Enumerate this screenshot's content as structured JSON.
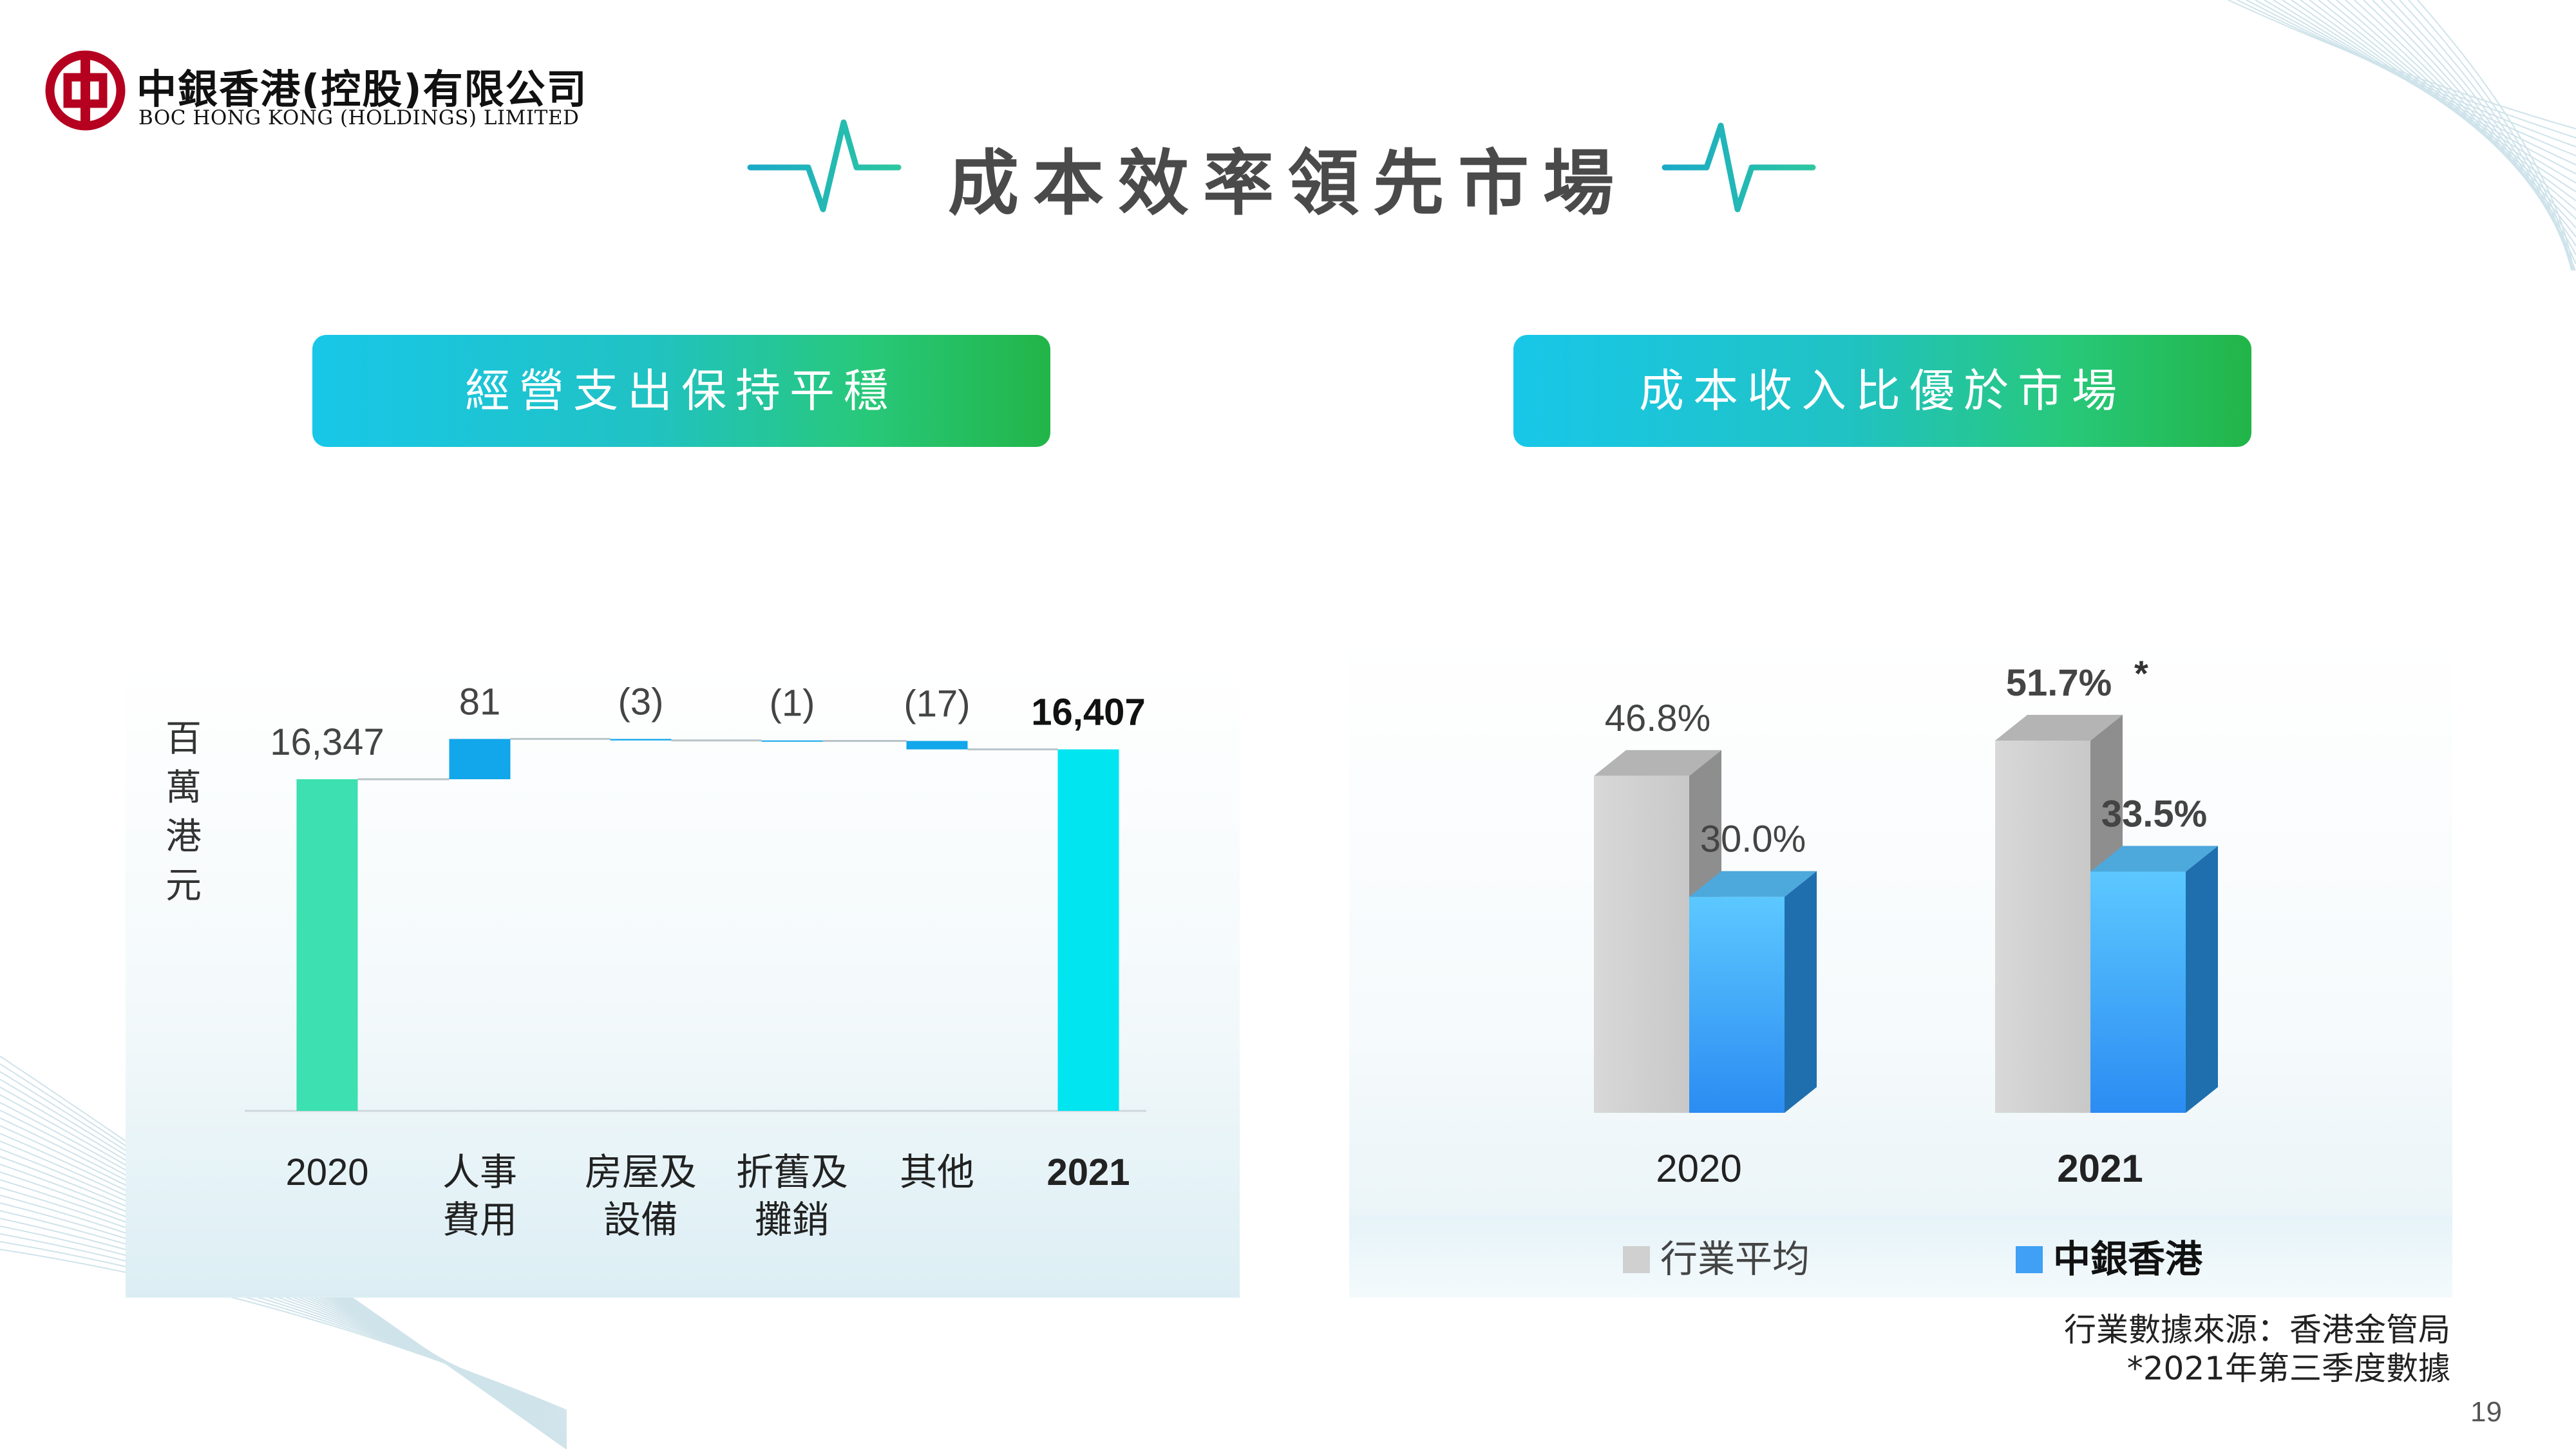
{
  "header": {
    "logo_cn": "中銀香港(控股)有限公司",
    "logo_en": "BOC HONG KONG (HOLDINGS) LIMITED",
    "title": "成本效率領先市場",
    "brand_color": "#b5001f"
  },
  "left_section": {
    "title": "經營支出保持平穩"
  },
  "right_section": {
    "title": "成本收入比優於市場"
  },
  "colors": {
    "green_bar": "#3de0b0",
    "cyan_bar": "#00e5f0",
    "blue_delta": "#12a6ea",
    "gray_bar": "#d0d0d0",
    "blue_bar": "#3fa0f5",
    "accent_teal": "#1fb6c8"
  },
  "chart_data": [
    {
      "type": "bar",
      "subtype": "waterfall",
      "ylabel": "百萬港元",
      "categories": [
        "2020",
        "人事費用",
        "房屋及設備",
        "折舊及攤銷",
        "其他",
        "2021"
      ],
      "category_lines": [
        [
          "2020"
        ],
        [
          "人事",
          "費用"
        ],
        [
          "房屋及",
          "設備"
        ],
        [
          "折舊及",
          "攤銷"
        ],
        [
          "其他"
        ],
        [
          "2021"
        ]
      ],
      "values": [
        16347,
        81,
        -3,
        -1,
        -17,
        16407
      ],
      "value_labels": [
        "16,347",
        "81",
        "(3)",
        "(1)",
        "(17)",
        "16,407"
      ],
      "kinds": [
        "total",
        "delta",
        "delta",
        "delta",
        "delta",
        "total"
      ],
      "ylim": [
        15680,
        16470
      ],
      "grid": false
    },
    {
      "type": "bar",
      "subtype": "3d-grouped",
      "categories": [
        "2020",
        "2021"
      ],
      "series": [
        {
          "name": "行業平均",
          "values": [
            46.8,
            51.7
          ],
          "labels": [
            "46.8%",
            "51.7%"
          ]
        },
        {
          "name": "中銀香港",
          "values": [
            30.0,
            33.5
          ],
          "labels": [
            "30.0%",
            "33.5%"
          ]
        }
      ],
      "annotation": "*",
      "ylim": [
        0,
        60
      ],
      "legend": "bottom",
      "grid": false
    }
  ],
  "footnotes": {
    "source": "行業數據來源：香港金管局",
    "note": "*2021年第三季度數據"
  },
  "page_number": "19"
}
